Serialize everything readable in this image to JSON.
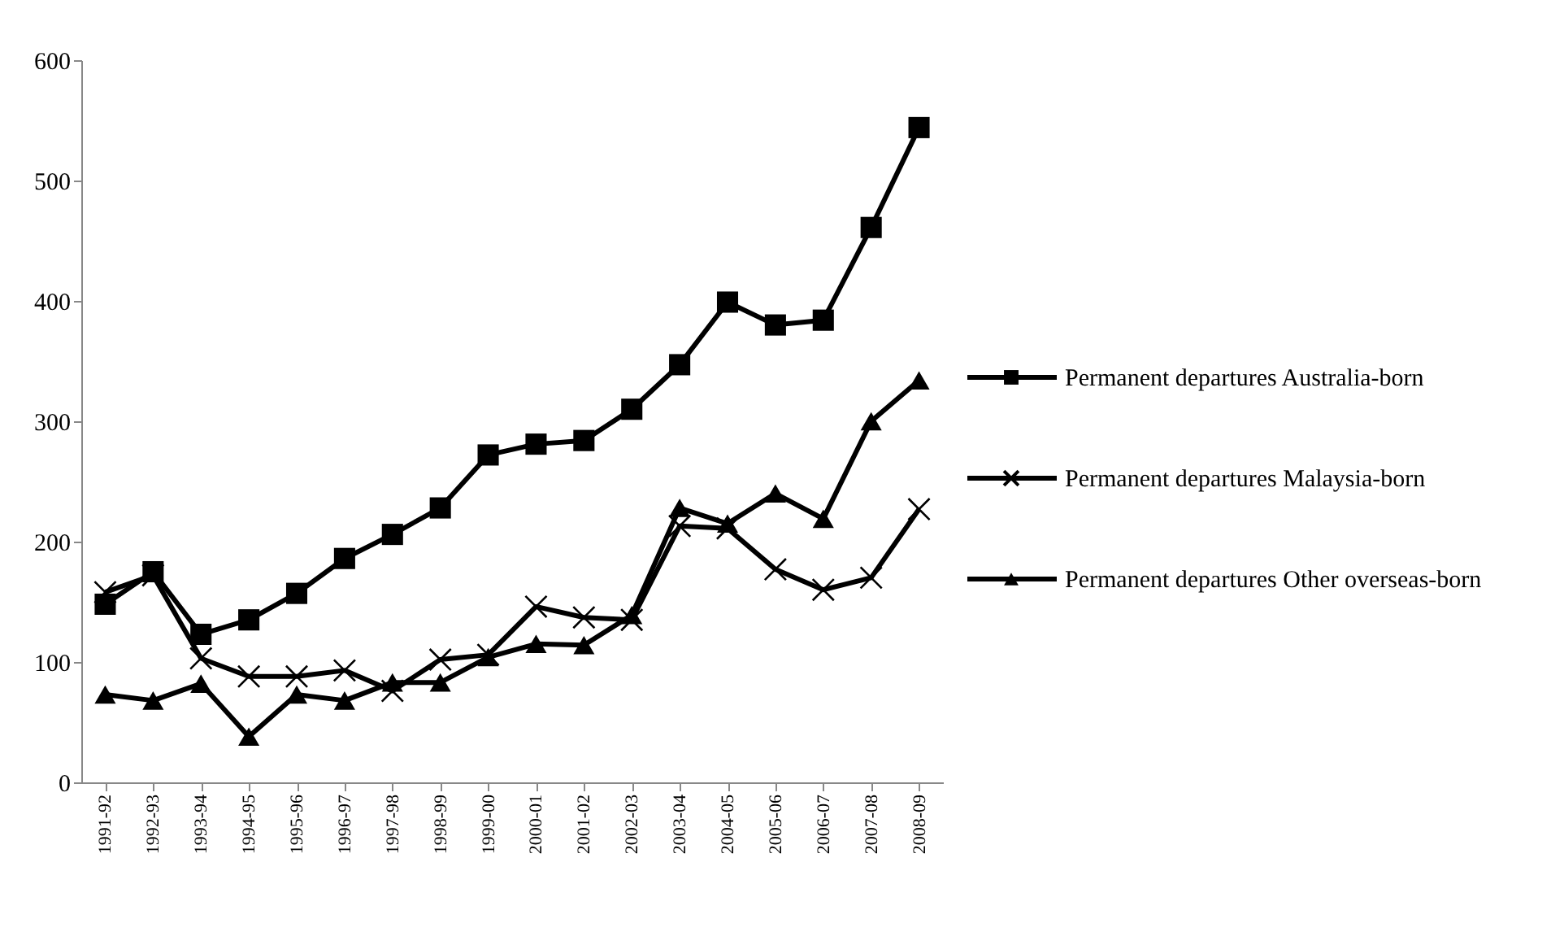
{
  "chart_data": {
    "type": "line",
    "categories": [
      "1991-92",
      "1992-93",
      "1993-94",
      "1994-95",
      "1995-96",
      "1996-97",
      "1997-98",
      "1998-99",
      "1999-00",
      "2000-01",
      "2001-02",
      "2002-03",
      "2003-04",
      "2004-05",
      "2005-06",
      "2006-07",
      "2007-08",
      "2008-09"
    ],
    "series": [
      {
        "name": "Permanent departures Australia-born",
        "color": "#000000",
        "marker": "square",
        "values": [
          148,
          175,
          123,
          135,
          157,
          186,
          206,
          228,
          272,
          281,
          284,
          310,
          347,
          399,
          380,
          384,
          461,
          544
        ]
      },
      {
        "name": "Permanent departures Malaysia-born",
        "color": "#000000",
        "marker": "cross",
        "values": [
          158,
          172,
          103,
          88,
          88,
          93,
          76,
          102,
          106,
          146,
          137,
          135,
          213,
          211,
          177,
          160,
          170,
          227
        ]
      },
      {
        "name": "Permanent departures Other overseas-born",
        "color": "#000000",
        "marker": "triangle",
        "values": [
          73,
          68,
          82,
          38,
          73,
          68,
          83,
          83,
          104,
          115,
          114,
          139,
          228,
          215,
          240,
          219,
          300,
          334
        ]
      }
    ],
    "ylim": [
      0,
      600
    ],
    "yticks": [
      0,
      100,
      200,
      300,
      400,
      500,
      600
    ],
    "grid": false,
    "legend": "right",
    "line_style": "solid"
  }
}
